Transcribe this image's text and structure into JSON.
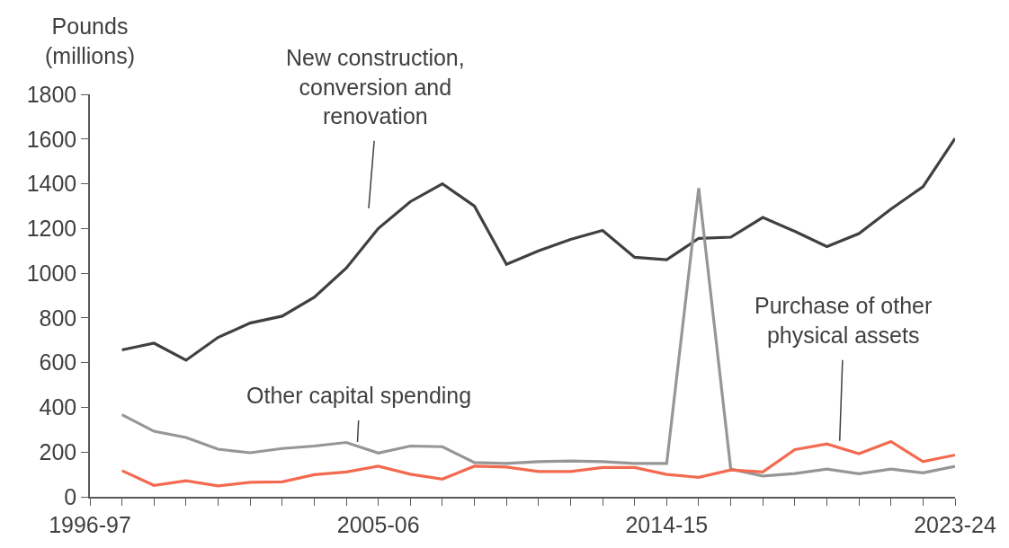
{
  "chart_data": {
    "type": "line",
    "ylabel": "Pounds\n(millions)",
    "categories": [
      "1996-97",
      null,
      null,
      null,
      null,
      null,
      null,
      null,
      null,
      "2005-06",
      null,
      null,
      null,
      null,
      null,
      null,
      null,
      null,
      "2014-15",
      null,
      null,
      null,
      null,
      null,
      null,
      null,
      null,
      "2023-24"
    ],
    "series": [
      {
        "name": "New construction,\nconversion and\nrenovation",
        "color": "#404040",
        "values": [
          null,
          657,
          687,
          611,
          713,
          777,
          808,
          892,
          1023,
          1200,
          1320,
          1400,
          1300,
          1040,
          1100,
          1151,
          1191,
          1071,
          1060,
          1156,
          1161,
          1249,
          1187,
          1119,
          1177,
          1287,
          1387,
          1603
        ]
      },
      {
        "name": "Other capital spending",
        "color": "#969696",
        "values": [
          null,
          367,
          293,
          265,
          213,
          197,
          216,
          227,
          243,
          196,
          227,
          224,
          153,
          149,
          157,
          160,
          157,
          149,
          149,
          1380,
          124,
          93,
          104,
          124,
          103,
          124,
          107,
          136
        ]
      },
      {
        "name": "Purchase of other\nphysical assets",
        "color": "#f26a4f",
        "values": [
          null,
          117,
          51,
          72,
          49,
          65,
          67,
          99,
          111,
          137,
          101,
          79,
          137,
          133,
          113,
          113,
          131,
          131,
          100,
          87,
          120,
          111,
          211,
          236,
          193,
          247,
          157,
          187
        ]
      }
    ],
    "ylim": [
      0,
      1800
    ],
    "yticks": [
      0,
      200,
      400,
      600,
      800,
      1000,
      1200,
      1400,
      1600,
      1800
    ],
    "legend": false,
    "marker": "none",
    "line_style": "solid"
  }
}
